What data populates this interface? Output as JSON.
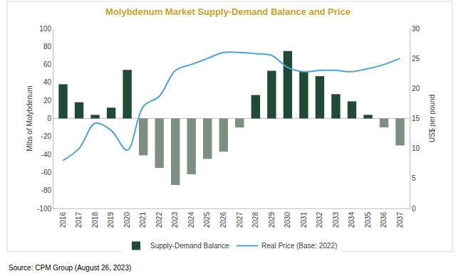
{
  "chart_data": {
    "type": "bar",
    "title": "Molybdenum Market Supply-Demand Balance and Price",
    "categories": [
      "2016",
      "2017",
      "2018",
      "2019",
      "2020",
      "2021",
      "2022",
      "2023",
      "2024",
      "2025",
      "2026",
      "2027",
      "2028",
      "2029",
      "2030",
      "2031",
      "2032",
      "2033",
      "2034",
      "2035",
      "2036",
      "2037"
    ],
    "series": [
      {
        "name": "Supply-Demand Balance",
        "type": "bar",
        "values": [
          38,
          18,
          4,
          12,
          54,
          -41,
          -55,
          -74,
          -62,
          -45,
          -37,
          -10,
          26,
          53,
          75,
          52,
          47,
          27,
          19,
          4,
          -10,
          -30
        ],
        "colors": [
          "#1f4a36",
          "#1f4a36",
          "#1f4a36",
          "#1f4a36",
          "#1f4a36",
          "#7d8f80",
          "#7d8f80",
          "#7d8f80",
          "#7d8f80",
          "#7d8f80",
          "#7d8f80",
          "#7d8f80",
          "#1f4a36",
          "#1f4a36",
          "#1f4a36",
          "#1f4a36",
          "#1f4a36",
          "#1f4a36",
          "#1f4a36",
          "#1f4a36",
          "#7d8f80",
          "#7d8f80"
        ]
      },
      {
        "name": "Real Price (Base: 2022)",
        "type": "line",
        "axis": "y2",
        "color": "#4da3dc",
        "line_style": "smooth",
        "values": [
          8,
          10,
          14.2,
          13,
          9.7,
          17,
          18.7,
          23,
          24,
          25,
          26,
          26,
          25.8,
          25.5,
          23.5,
          22.8,
          23,
          23,
          22.8,
          23.3,
          24,
          25
        ]
      }
    ],
    "ylabel": "Mlbs of Molybdenum",
    "y2label": "US$ per pound",
    "ylim": [
      -100,
      100
    ],
    "yticks": [
      -100,
      -80,
      -60,
      -40,
      -20,
      0,
      20,
      40,
      60,
      80,
      100
    ],
    "y2lim": [
      0,
      30
    ],
    "y2ticks": [
      0,
      5,
      10,
      15,
      20,
      25,
      30
    ],
    "grid": false,
    "legend": "bottom",
    "annotations": [
      "Source: CPM Group (August 26, 2023)"
    ]
  }
}
